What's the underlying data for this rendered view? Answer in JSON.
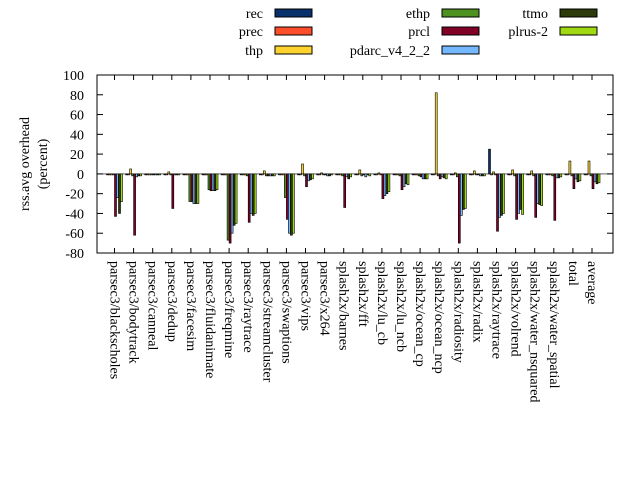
{
  "chart_data": {
    "type": "bar",
    "title": "",
    "xlabel": "",
    "ylabel": [
      "rss.avg overhead",
      "(percent)"
    ],
    "ylim": [
      -80,
      100
    ],
    "yticks": [
      -80,
      -60,
      -40,
      -20,
      0,
      20,
      40,
      60,
      80,
      100
    ],
    "grid": false,
    "legend_position": "top",
    "categories": [
      "parsec3/blackscholes",
      "parsec3/bodytrack",
      "parsec3/canneal",
      "parsec3/dedup",
      "parsec3/facesim",
      "parsec3/fluidanimate",
      "parsec3/freqmine",
      "parsec3/raytrace",
      "parsec3/streamcluster",
      "parsec3/swaptions",
      "parsec3/vips",
      "parsec3/x264",
      "splash2x/barnes",
      "splash2x/fft",
      "splash2x/lu_cb",
      "splash2x/lu_ncb",
      "splash2x/ocean_cp",
      "splash2x/ocean_ncp",
      "splash2x/radiosity",
      "splash2x/radix",
      "splash2x/raytrace",
      "splash2x/volrend",
      "splash2x/water_nsquared",
      "splash2x/water_spatial",
      "total",
      "average"
    ],
    "series": [
      {
        "name": "rec",
        "color": "#08306b",
        "values": [
          -1,
          -1,
          -1,
          -1,
          -1,
          -1,
          -1,
          -1,
          -1,
          -1,
          -1,
          -1,
          -1,
          -1,
          -1,
          -1,
          -1,
          -1,
          -1,
          -1,
          25,
          -1,
          -1,
          -1,
          -1,
          -1
        ]
      },
      {
        "name": "prec",
        "color": "#fc4e2a",
        "values": [
          -1,
          -1,
          -1,
          -1,
          -1,
          -1,
          -1,
          -1,
          -1,
          -1,
          -1,
          -1,
          -1,
          -1,
          -1,
          -1,
          -1,
          -1,
          -1,
          -1,
          -1,
          -1,
          -1,
          -1,
          -1,
          -1
        ]
      },
      {
        "name": "thp",
        "color": "#fed330",
        "values": [
          -1,
          5,
          0,
          2,
          -1,
          -1,
          -1,
          -1,
          3,
          -1,
          10,
          1,
          -1,
          4,
          1,
          0,
          0,
          82,
          1,
          3,
          2,
          4,
          3,
          0,
          13,
          13
        ]
      },
      {
        "name": "ethp",
        "color": "#4d9221",
        "values": [
          -1,
          -2,
          -1,
          -1,
          -28,
          -16,
          -67,
          -2,
          -2,
          -24,
          -2,
          -1,
          -2,
          -2,
          -1,
          -2,
          -2,
          -2,
          -3,
          -1,
          -1,
          -2,
          -2,
          -2,
          -2,
          -2
        ]
      },
      {
        "name": "prcl",
        "color": "#800026",
        "values": [
          -43,
          -62,
          -1,
          -35,
          -28,
          -17,
          -70,
          -49,
          -2,
          -46,
          -13,
          -1,
          -34,
          -1,
          -25,
          -16,
          -3,
          -5,
          -70,
          -1,
          -58,
          -46,
          -44,
          -47,
          -15,
          -15
        ]
      },
      {
        "name": "pdarc_v4_2_2",
        "color": "#74b9ff",
        "values": [
          -24,
          -3,
          -1,
          -1,
          -30,
          -17,
          -60,
          -40,
          -2,
          -60,
          -7,
          -2,
          -3,
          -3,
          -22,
          -13,
          -5,
          -3,
          -42,
          -2,
          -44,
          -40,
          -30,
          -4,
          -5,
          -8
        ]
      },
      {
        "name": "ttmo",
        "color": "#2d3a0a",
        "values": [
          -40,
          -2,
          -1,
          -1,
          -30,
          -17,
          -52,
          -42,
          -2,
          -62,
          -6,
          -2,
          -5,
          -1,
          -20,
          -10,
          -5,
          -4,
          -36,
          -2,
          -42,
          -36,
          -31,
          -4,
          -8,
          -10
        ]
      },
      {
        "name": "plrus-2",
        "color": "#a0d911",
        "values": [
          -28,
          -2,
          -1,
          -1,
          -30,
          -16,
          -50,
          -40,
          -2,
          -60,
          -5,
          -1,
          -3,
          -2,
          -18,
          -11,
          -5,
          -5,
          -35,
          -2,
          -40,
          -41,
          -32,
          -3,
          -7,
          -9
        ]
      }
    ]
  }
}
